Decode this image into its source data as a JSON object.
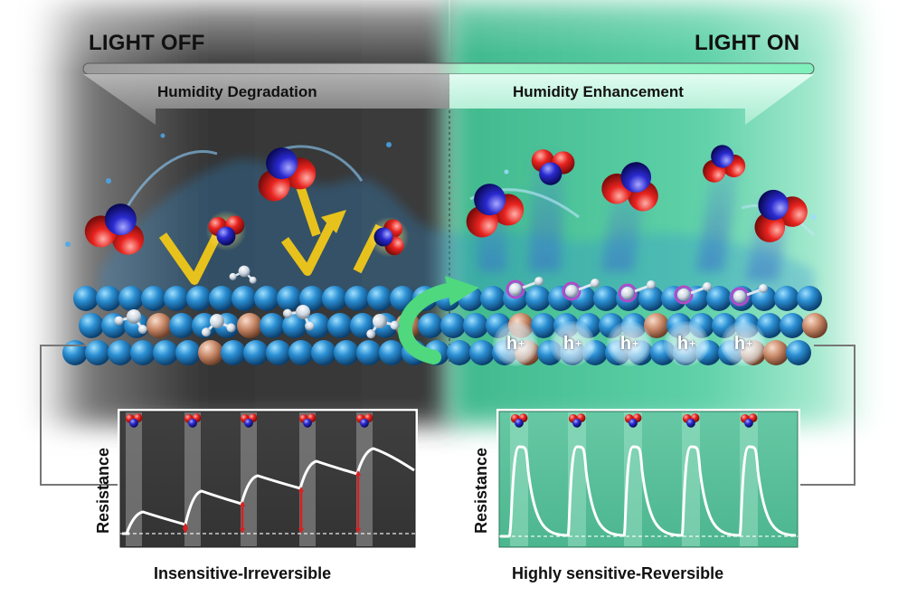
{
  "left_side": {
    "title": "LIGHT OFF",
    "banner": "Humidity Degradation",
    "ylabel": "Resistance",
    "caption": "Insensitive-Irreversible"
  },
  "right_side": {
    "title": "LIGHT ON",
    "banner": "Humidity Enhancement",
    "ylabel": "Resistance",
    "caption": "Highly sensitive-Reversible",
    "hole_label": "h"
  },
  "colors": {
    "dark_bg": "#4a4a4a",
    "green_bg": "#5fc9a4",
    "water_blue": "#2f8fd8",
    "lattice_blue": "#2c8fd0",
    "copper": "#c98a6a",
    "oxygen_red": "#e8231f",
    "nitrogen_blue": "#2a2ad0",
    "arrow_yellow": "#e8c21c",
    "arrow_green": "#4fd87e",
    "curve_white": "#ffffff",
    "irreversible_marker": "#d82020"
  },
  "icons": [
    "no2-molecule-icon",
    "water-molecule-icon",
    "curved-arrow-icon",
    "zigzag-arrow-icon"
  ]
}
